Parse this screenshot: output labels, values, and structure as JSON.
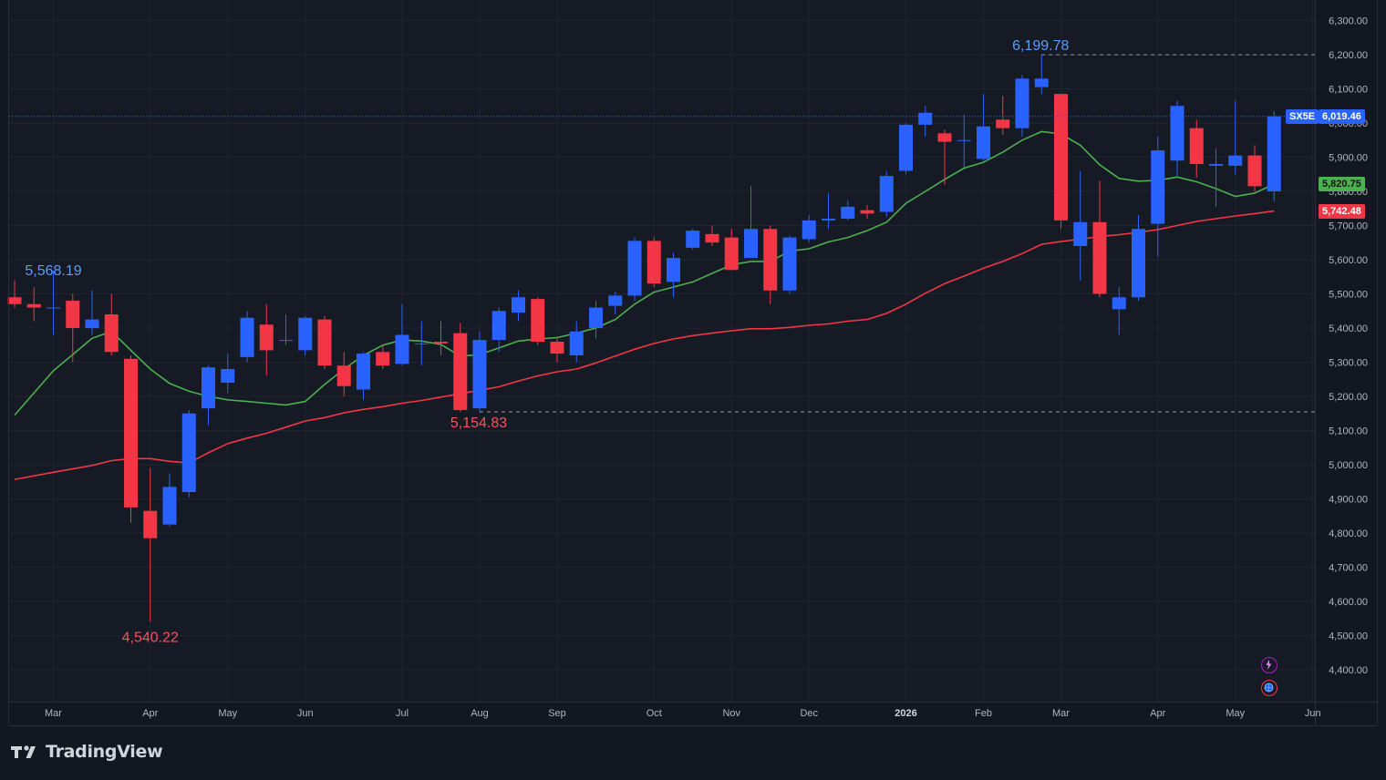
{
  "app": {
    "brand": "TradingView",
    "brand_icon": "tradingview-logo-icon"
  },
  "symbol": {
    "ticker": "SX5E",
    "last_price": "6,019.46",
    "last_value": 6019.46,
    "color": "#2962ff"
  },
  "indicators": [
    {
      "label": "5,820.75",
      "value": 5820.75,
      "color": "#4caf50",
      "badge_color": "#4caf50"
    },
    {
      "label": "5,742.48",
      "value": 5742.48,
      "color": "#f23645",
      "badge_color": "#f23645"
    }
  ],
  "annotations": {
    "high": {
      "label": "6,199.78",
      "value": 6199.78,
      "color": "#5b9cf6"
    },
    "low": {
      "label": "4,540.22",
      "value": 4540.22,
      "color": "#f7525f"
    },
    "prev_high": {
      "label": "5,568.19",
      "value": 5568.19,
      "color": "#5b9cf6"
    },
    "pivot_low": {
      "label": "5,154.83",
      "value": 5154.83,
      "color": "#f7525f"
    }
  },
  "icons": {
    "indicator_lightning": "lightning-icon",
    "indicator_globe": "globe-icon"
  },
  "chart_data": {
    "type": "candlestick",
    "interval": "weekly",
    "up_color": "#2962ff",
    "down_color": "#f23645",
    "ylim": [
      4360,
      6300
    ],
    "y_ticks": [
      4400,
      4500,
      4600,
      4700,
      4800,
      4900,
      5000,
      5100,
      5200,
      5300,
      5400,
      5500,
      5600,
      5700,
      5800,
      5900,
      6000,
      6100,
      6200,
      6300
    ],
    "y_tick_labels": [
      "4,400.00",
      "4,500.00",
      "4,600.00",
      "4,700.00",
      "4,800.00",
      "4,900.00",
      "5,000.00",
      "5,100.00",
      "5,200.00",
      "5,300.00",
      "5,400.00",
      "5,500.00",
      "5,600.00",
      "5,700.00",
      "5,800.00",
      "5,900.00",
      "6,000.00",
      "6,100.00",
      "6,200.00",
      "6,300.00"
    ],
    "x_tick_labels": [
      "Mar",
      "Apr",
      "May",
      "Jun",
      "Jul",
      "Aug",
      "Sep",
      "Oct",
      "Nov",
      "Dec",
      "2026",
      "Feb",
      "Mar",
      "Apr",
      "May",
      "Jun"
    ],
    "x_tick_weeks": [
      2,
      7,
      11,
      15,
      20,
      24,
      28,
      33,
      37,
      41,
      46,
      50,
      54,
      59,
      63,
      67
    ],
    "x_tick_bold": [
      10
    ],
    "candles": [
      {
        "o": 5490,
        "h": 5540,
        "l": 5460,
        "c": 5470
      },
      {
        "o": 5470,
        "h": 5520,
        "l": 5420,
        "c": 5460
      },
      {
        "o": 5460,
        "h": 5568.19,
        "l": 5380,
        "c": 5460
      },
      {
        "o": 5480,
        "h": 5500,
        "l": 5300,
        "c": 5400
      },
      {
        "o": 5400,
        "h": 5510,
        "l": 5380,
        "c": 5425
      },
      {
        "o": 5440,
        "h": 5500,
        "l": 5320,
        "c": 5330
      },
      {
        "o": 5310,
        "h": 5320,
        "l": 4830,
        "c": 4875
      },
      {
        "o": 4865,
        "h": 4990,
        "l": 4540.22,
        "c": 4785
      },
      {
        "o": 4825,
        "h": 4975,
        "l": 4820,
        "c": 4935
      },
      {
        "o": 4920,
        "h": 5160,
        "l": 4905,
        "c": 5150
      },
      {
        "o": 5165,
        "h": 5290,
        "l": 5115,
        "c": 5285
      },
      {
        "o": 5240,
        "h": 5325,
        "l": 5210,
        "c": 5280
      },
      {
        "o": 5315,
        "h": 5450,
        "l": 5300,
        "c": 5430
      },
      {
        "o": 5410,
        "h": 5470,
        "l": 5260,
        "c": 5335
      },
      {
        "o": 5365,
        "h": 5440,
        "l": 5350,
        "c": 5365
      },
      {
        "o": 5335,
        "h": 5435,
        "l": 5320,
        "c": 5430
      },
      {
        "o": 5425,
        "h": 5435,
        "l": 5280,
        "c": 5290
      },
      {
        "o": 5290,
        "h": 5330,
        "l": 5200,
        "c": 5230
      },
      {
        "o": 5220,
        "h": 5330,
        "l": 5190,
        "c": 5325
      },
      {
        "o": 5330,
        "h": 5350,
        "l": 5280,
        "c": 5290
      },
      {
        "o": 5295,
        "h": 5470,
        "l": 5290,
        "c": 5380
      },
      {
        "o": 5355,
        "h": 5420,
        "l": 5290,
        "c": 5355
      },
      {
        "o": 5360,
        "h": 5420,
        "l": 5320,
        "c": 5355
      },
      {
        "o": 5385,
        "h": 5415,
        "l": 5155,
        "c": 5160
      },
      {
        "o": 5165,
        "h": 5390,
        "l": 5154.83,
        "c": 5365
      },
      {
        "o": 5365,
        "h": 5460,
        "l": 5330,
        "c": 5450
      },
      {
        "o": 5445,
        "h": 5510,
        "l": 5420,
        "c": 5490
      },
      {
        "o": 5485,
        "h": 5490,
        "l": 5350,
        "c": 5360
      },
      {
        "o": 5360,
        "h": 5370,
        "l": 5300,
        "c": 5325
      },
      {
        "o": 5320,
        "h": 5420,
        "l": 5300,
        "c": 5390
      },
      {
        "o": 5400,
        "h": 5480,
        "l": 5370,
        "c": 5460
      },
      {
        "o": 5465,
        "h": 5505,
        "l": 5440,
        "c": 5495
      },
      {
        "o": 5495,
        "h": 5665,
        "l": 5480,
        "c": 5655
      },
      {
        "o": 5655,
        "h": 5665,
        "l": 5520,
        "c": 5530
      },
      {
        "o": 5535,
        "h": 5620,
        "l": 5490,
        "c": 5605
      },
      {
        "o": 5635,
        "h": 5690,
        "l": 5630,
        "c": 5685
      },
      {
        "o": 5675,
        "h": 5700,
        "l": 5640,
        "c": 5650
      },
      {
        "o": 5665,
        "h": 5690,
        "l": 5570,
        "c": 5570
      },
      {
        "o": 5605,
        "h": 5815,
        "l": 5605,
        "c": 5690
      },
      {
        "o": 5690,
        "h": 5700,
        "l": 5470,
        "c": 5510
      },
      {
        "o": 5510,
        "h": 5670,
        "l": 5500,
        "c": 5665
      },
      {
        "o": 5660,
        "h": 5730,
        "l": 5650,
        "c": 5715
      },
      {
        "o": 5715,
        "h": 5795,
        "l": 5690,
        "c": 5720
      },
      {
        "o": 5720,
        "h": 5775,
        "l": 5715,
        "c": 5755
      },
      {
        "o": 5745,
        "h": 5760,
        "l": 5720,
        "c": 5735
      },
      {
        "o": 5740,
        "h": 5860,
        "l": 5725,
        "c": 5845
      },
      {
        "o": 5860,
        "h": 6000,
        "l": 5850,
        "c": 5995
      },
      {
        "o": 5995,
        "h": 6050,
        "l": 5960,
        "c": 6030
      },
      {
        "o": 5970,
        "h": 5980,
        "l": 5820,
        "c": 5945
      },
      {
        "o": 5950,
        "h": 6025,
        "l": 5870,
        "c": 5950
      },
      {
        "o": 5895,
        "h": 6085,
        "l": 5890,
        "c": 5990
      },
      {
        "o": 6010,
        "h": 6080,
        "l": 5965,
        "c": 5985
      },
      {
        "o": 5985,
        "h": 6140,
        "l": 5960,
        "c": 6130
      },
      {
        "o": 6105,
        "h": 6199.78,
        "l": 6085,
        "c": 6130
      },
      {
        "o": 6085,
        "h": 6085,
        "l": 5690,
        "c": 5715
      },
      {
        "o": 5640,
        "h": 5860,
        "l": 5540,
        "c": 5710
      },
      {
        "o": 5710,
        "h": 5830,
        "l": 5490,
        "c": 5500
      },
      {
        "o": 5455,
        "h": 5520,
        "l": 5380,
        "c": 5490
      },
      {
        "o": 5490,
        "h": 5730,
        "l": 5480,
        "c": 5690
      },
      {
        "o": 5705,
        "h": 5960,
        "l": 5610,
        "c": 5920
      },
      {
        "o": 5890,
        "h": 6065,
        "l": 5845,
        "c": 6050
      },
      {
        "o": 5985,
        "h": 6010,
        "l": 5840,
        "c": 5880
      },
      {
        "o": 5875,
        "h": 5925,
        "l": 5755,
        "c": 5880
      },
      {
        "o": 5875,
        "h": 6065,
        "l": 5850,
        "c": 5905
      },
      {
        "o": 5905,
        "h": 5935,
        "l": 5800,
        "c": 5815
      },
      {
        "o": 5800,
        "h": 6035,
        "l": 5770,
        "c": 6019.46
      }
    ],
    "series": [
      {
        "name": "",
        "color": "#4caf50",
        "points": [
          [
            0,
            5145
          ],
          [
            2,
            5275
          ],
          [
            4,
            5370
          ],
          [
            5,
            5390
          ],
          [
            6,
            5335
          ],
          [
            7,
            5280
          ],
          [
            8,
            5238
          ],
          [
            9,
            5215
          ],
          [
            10,
            5200
          ],
          [
            11,
            5190
          ],
          [
            12,
            5185
          ],
          [
            13,
            5180
          ],
          [
            14,
            5175
          ],
          [
            15,
            5185
          ],
          [
            16,
            5235
          ],
          [
            17,
            5280
          ],
          [
            18,
            5320
          ],
          [
            19,
            5350
          ],
          [
            20,
            5365
          ],
          [
            21,
            5362
          ],
          [
            22,
            5352
          ],
          [
            23,
            5318
          ],
          [
            24,
            5322
          ],
          [
            25,
            5342
          ],
          [
            26,
            5362
          ],
          [
            27,
            5368
          ],
          [
            28,
            5372
          ],
          [
            29,
            5385
          ],
          [
            30,
            5400
          ],
          [
            31,
            5425
          ],
          [
            32,
            5470
          ],
          [
            33,
            5505
          ],
          [
            34,
            5520
          ],
          [
            35,
            5535
          ],
          [
            36,
            5560
          ],
          [
            37,
            5585
          ],
          [
            38,
            5595
          ],
          [
            39,
            5595
          ],
          [
            40,
            5625
          ],
          [
            41,
            5632
          ],
          [
            42,
            5652
          ],
          [
            43,
            5665
          ],
          [
            44,
            5685
          ],
          [
            45,
            5710
          ],
          [
            46,
            5765
          ],
          [
            47,
            5800
          ],
          [
            48,
            5835
          ],
          [
            49,
            5868
          ],
          [
            50,
            5885
          ],
          [
            51,
            5915
          ],
          [
            52,
            5950
          ],
          [
            53,
            5975
          ],
          [
            54,
            5968
          ],
          [
            55,
            5935
          ],
          [
            56,
            5878
          ],
          [
            57,
            5838
          ],
          [
            58,
            5830
          ],
          [
            59,
            5832
          ],
          [
            60,
            5842
          ],
          [
            61,
            5828
          ],
          [
            62,
            5808
          ],
          [
            63,
            5785
          ],
          [
            64,
            5795
          ],
          [
            65,
            5820.75
          ]
        ]
      },
      {
        "name": "",
        "color": "#f23645",
        "points": [
          [
            0,
            4957
          ],
          [
            2,
            4978
          ],
          [
            4,
            4998
          ],
          [
            5,
            5012
          ],
          [
            6,
            5018
          ],
          [
            7,
            5018
          ],
          [
            8,
            5010
          ],
          [
            9,
            5005
          ],
          [
            10,
            5035
          ],
          [
            11,
            5062
          ],
          [
            12,
            5078
          ],
          [
            13,
            5092
          ],
          [
            14,
            5110
          ],
          [
            15,
            5128
          ],
          [
            16,
            5138
          ],
          [
            17,
            5152
          ],
          [
            18,
            5162
          ],
          [
            19,
            5170
          ],
          [
            20,
            5180
          ],
          [
            21,
            5188
          ],
          [
            22,
            5198
          ],
          [
            23,
            5208
          ],
          [
            24,
            5218
          ],
          [
            25,
            5228
          ],
          [
            26,
            5245
          ],
          [
            27,
            5260
          ],
          [
            28,
            5272
          ],
          [
            29,
            5280
          ],
          [
            30,
            5298
          ],
          [
            31,
            5318
          ],
          [
            32,
            5338
          ],
          [
            33,
            5355
          ],
          [
            34,
            5368
          ],
          [
            35,
            5378
          ],
          [
            36,
            5385
          ],
          [
            37,
            5392
          ],
          [
            38,
            5398
          ],
          [
            39,
            5398
          ],
          [
            40,
            5402
          ],
          [
            41,
            5408
          ],
          [
            42,
            5412
          ],
          [
            43,
            5420
          ],
          [
            44,
            5425
          ],
          [
            45,
            5443
          ],
          [
            46,
            5470
          ],
          [
            47,
            5502
          ],
          [
            48,
            5530
          ],
          [
            49,
            5552
          ],
          [
            50,
            5575
          ],
          [
            51,
            5595
          ],
          [
            52,
            5618
          ],
          [
            53,
            5645
          ],
          [
            54,
            5653
          ],
          [
            55,
            5660
          ],
          [
            56,
            5668
          ],
          [
            57,
            5673
          ],
          [
            58,
            5680
          ],
          [
            59,
            5688
          ],
          [
            60,
            5700
          ],
          [
            61,
            5712
          ],
          [
            62,
            5720
          ],
          [
            63,
            5728
          ],
          [
            64,
            5735
          ],
          [
            65,
            5742.48
          ]
        ]
      }
    ]
  }
}
